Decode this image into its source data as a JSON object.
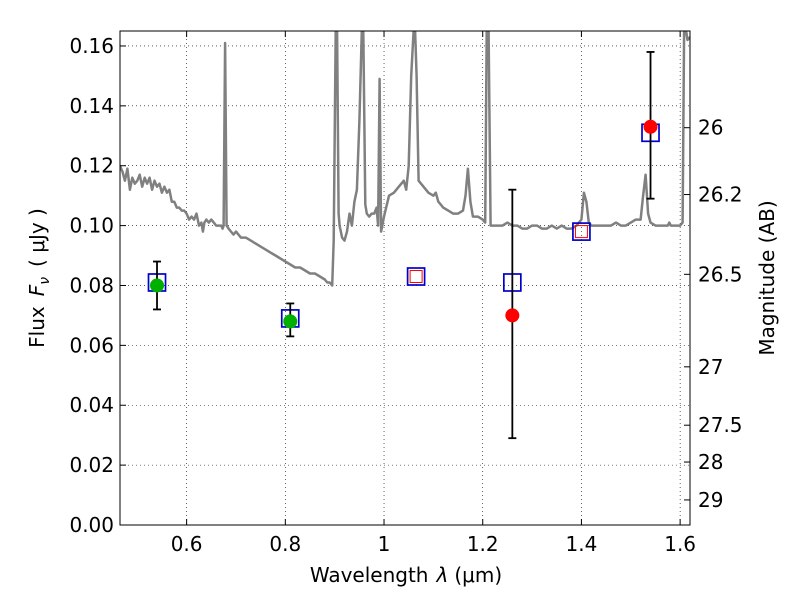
{
  "chart_data": {
    "type": "scatter",
    "xlabel_prefix": "Wavelength",
    "xlabel_symbol": "λ",
    "xlabel_unit": "(μm)",
    "ylabel_prefix": "Flux",
    "ylabel_symbol": "F",
    "ylabel_subscript": "ν",
    "ylabel_unit": "( μJy )",
    "y2label": "Magnitude (AB)",
    "xlim": [
      0.465,
      1.62
    ],
    "ylim": [
      0.0,
      0.165
    ],
    "x_ticks": [
      0.6,
      0.8,
      1.0,
      1.2,
      1.4,
      1.6
    ],
    "x_tick_labels": [
      "0.6",
      "0.8",
      "1",
      "1.2",
      "1.4",
      "1.6"
    ],
    "y_ticks": [
      0.0,
      0.02,
      0.04,
      0.06,
      0.08,
      0.1,
      0.12,
      0.14,
      0.16
    ],
    "y_tick_labels": [
      "0.00",
      "0.02",
      "0.04",
      "0.06",
      "0.08",
      "0.10",
      "0.12",
      "0.14",
      "0.16"
    ],
    "mag_ticks": [
      26,
      26.2,
      26.5,
      27,
      27.5,
      28,
      29
    ],
    "mag_tick_labels": [
      "26",
      "26.2",
      "26.5",
      "27",
      "27.5",
      "28",
      "29"
    ],
    "grid": true,
    "colors": {
      "spectrum": "#808080",
      "model": "#0000cc",
      "observed_green": "#00b000",
      "observed_red": "#ff0000",
      "errorbar": "#000000"
    },
    "series": [
      {
        "name": "model-spectrum",
        "kind": "line",
        "points": [
          [
            0.465,
            0.12
          ],
          [
            0.47,
            0.118
          ],
          [
            0.475,
            0.115
          ],
          [
            0.48,
            0.119
          ],
          [
            0.485,
            0.112
          ],
          [
            0.49,
            0.116
          ],
          [
            0.495,
            0.114
          ],
          [
            0.5,
            0.115
          ],
          [
            0.505,
            0.117
          ],
          [
            0.51,
            0.113
          ],
          [
            0.515,
            0.116
          ],
          [
            0.52,
            0.114
          ],
          [
            0.525,
            0.116
          ],
          [
            0.53,
            0.112
          ],
          [
            0.535,
            0.115
          ],
          [
            0.54,
            0.113
          ],
          [
            0.545,
            0.114
          ],
          [
            0.55,
            0.111
          ],
          [
            0.555,
            0.113
          ],
          [
            0.56,
            0.111
          ],
          [
            0.565,
            0.112
          ],
          [
            0.57,
            0.108
          ],
          [
            0.575,
            0.108
          ],
          [
            0.58,
            0.106
          ],
          [
            0.585,
            0.106
          ],
          [
            0.59,
            0.105
          ],
          [
            0.595,
            0.105
          ],
          [
            0.6,
            0.104
          ],
          [
            0.605,
            0.102
          ],
          [
            0.61,
            0.103
          ],
          [
            0.615,
            0.102
          ],
          [
            0.62,
            0.104
          ],
          [
            0.625,
            0.1
          ],
          [
            0.63,
            0.101
          ],
          [
            0.633,
            0.098
          ],
          [
            0.636,
            0.101
          ],
          [
            0.64,
            0.102
          ],
          [
            0.645,
            0.101
          ],
          [
            0.65,
            0.102
          ],
          [
            0.655,
            0.101
          ],
          [
            0.66,
            0.1
          ],
          [
            0.665,
            0.1
          ],
          [
            0.67,
            0.1
          ],
          [
            0.673,
            0.099
          ],
          [
            0.675,
            0.1
          ],
          [
            0.678,
            0.161
          ],
          [
            0.681,
            0.1
          ],
          [
            0.685,
            0.099
          ],
          [
            0.69,
            0.098
          ],
          [
            0.695,
            0.097
          ],
          [
            0.7,
            0.098
          ],
          [
            0.71,
            0.096
          ],
          [
            0.72,
            0.096
          ],
          [
            0.73,
            0.095
          ],
          [
            0.74,
            0.094
          ],
          [
            0.75,
            0.093
          ],
          [
            0.76,
            0.092
          ],
          [
            0.77,
            0.091
          ],
          [
            0.78,
            0.09
          ],
          [
            0.79,
            0.089
          ],
          [
            0.8,
            0.088
          ],
          [
            0.81,
            0.087
          ],
          [
            0.82,
            0.086
          ],
          [
            0.83,
            0.086
          ],
          [
            0.84,
            0.085
          ],
          [
            0.85,
            0.084
          ],
          [
            0.86,
            0.084
          ],
          [
            0.87,
            0.083
          ],
          [
            0.88,
            0.082
          ],
          [
            0.885,
            0.081
          ],
          [
            0.89,
            0.081
          ],
          [
            0.895,
            0.08
          ],
          [
            0.898,
            0.095
          ],
          [
            0.902,
            0.165
          ],
          [
            0.905,
            0.165
          ],
          [
            0.908,
            0.104
          ],
          [
            0.91,
            0.1
          ],
          [
            0.915,
            0.096
          ],
          [
            0.92,
            0.095
          ],
          [
            0.925,
            0.098
          ],
          [
            0.93,
            0.104
          ],
          [
            0.935,
            0.1
          ],
          [
            0.94,
            0.108
          ],
          [
            0.945,
            0.112
          ],
          [
            0.95,
            0.135
          ],
          [
            0.955,
            0.165
          ],
          [
            0.958,
            0.165
          ],
          [
            0.962,
            0.107
          ],
          [
            0.965,
            0.104
          ],
          [
            0.97,
            0.103
          ],
          [
            0.975,
            0.104
          ],
          [
            0.98,
            0.104
          ],
          [
            0.985,
            0.106
          ],
          [
            0.988,
            0.1
          ],
          [
            0.991,
            0.149
          ],
          [
            0.994,
            0.098
          ],
          [
            1.0,
            0.103
          ],
          [
            1.01,
            0.11
          ],
          [
            1.02,
            0.111
          ],
          [
            1.03,
            0.113
          ],
          [
            1.04,
            0.115
          ],
          [
            1.045,
            0.112
          ],
          [
            1.05,
            0.12
          ],
          [
            1.055,
            0.15
          ],
          [
            1.06,
            0.165
          ],
          [
            1.063,
            0.165
          ],
          [
            1.066,
            0.15
          ],
          [
            1.07,
            0.115
          ],
          [
            1.08,
            0.113
          ],
          [
            1.09,
            0.111
          ],
          [
            1.1,
            0.11
          ],
          [
            1.105,
            0.111
          ],
          [
            1.11,
            0.108
          ],
          [
            1.115,
            0.107
          ],
          [
            1.12,
            0.106
          ],
          [
            1.13,
            0.105
          ],
          [
            1.14,
            0.104
          ],
          [
            1.15,
            0.104
          ],
          [
            1.16,
            0.105
          ],
          [
            1.165,
            0.11
          ],
          [
            1.17,
            0.119
          ],
          [
            1.175,
            0.108
          ],
          [
            1.18,
            0.103
          ],
          [
            1.19,
            0.103
          ],
          [
            1.2,
            0.102
          ],
          [
            1.205,
            0.101
          ],
          [
            1.208,
            0.165
          ],
          [
            1.212,
            0.165
          ],
          [
            1.216,
            0.1
          ],
          [
            1.22,
            0.1
          ],
          [
            1.23,
            0.1
          ],
          [
            1.24,
            0.1
          ],
          [
            1.25,
            0.101
          ],
          [
            1.26,
            0.1
          ],
          [
            1.27,
            0.1
          ],
          [
            1.28,
            0.099
          ],
          [
            1.29,
            0.099
          ],
          [
            1.3,
            0.1
          ],
          [
            1.31,
            0.1
          ],
          [
            1.32,
            0.099
          ],
          [
            1.33,
            0.099
          ],
          [
            1.34,
            0.1
          ],
          [
            1.35,
            0.099
          ],
          [
            1.36,
            0.1
          ],
          [
            1.37,
            0.099
          ],
          [
            1.38,
            0.099
          ],
          [
            1.39,
            0.1
          ],
          [
            1.4,
            0.102
          ],
          [
            1.405,
            0.111
          ],
          [
            1.41,
            0.108
          ],
          [
            1.415,
            0.101
          ],
          [
            1.42,
            0.1
          ],
          [
            1.43,
            0.1
          ],
          [
            1.44,
            0.1
          ],
          [
            1.45,
            0.1
          ],
          [
            1.46,
            0.1
          ],
          [
            1.47,
            0.101
          ],
          [
            1.48,
            0.1
          ],
          [
            1.49,
            0.1
          ],
          [
            1.5,
            0.101
          ],
          [
            1.51,
            0.102
          ],
          [
            1.52,
            0.102
          ],
          [
            1.525,
            0.11
          ],
          [
            1.53,
            0.117
          ],
          [
            1.535,
            0.104
          ],
          [
            1.54,
            0.101
          ],
          [
            1.55,
            0.1
          ],
          [
            1.56,
            0.1
          ],
          [
            1.57,
            0.1
          ],
          [
            1.575,
            0.1
          ],
          [
            1.578,
            0.101
          ],
          [
            1.581,
            0.1
          ],
          [
            1.59,
            0.1
          ],
          [
            1.6,
            0.1
          ],
          [
            1.605,
            0.101
          ],
          [
            1.608,
            0.165
          ],
          [
            1.612,
            0.165
          ],
          [
            1.615,
            0.162
          ],
          [
            1.62,
            0.163
          ]
        ]
      },
      {
        "name": "model-photometry",
        "kind": "open-square",
        "points": [
          [
            0.54,
            0.081
          ],
          [
            0.81,
            0.069
          ],
          [
            1.065,
            0.083
          ],
          [
            1.26,
            0.081
          ],
          [
            1.4,
            0.098
          ],
          [
            1.54,
            0.131
          ]
        ]
      },
      {
        "name": "observed-optical",
        "kind": "filled-circle",
        "color": "green",
        "points": [
          [
            0.54,
            0.08
          ],
          [
            0.81,
            0.068
          ]
        ],
        "errors": [
          [
            0.072,
            0.088
          ],
          [
            0.063,
            0.074
          ]
        ]
      },
      {
        "name": "observed-nir",
        "kind": "filled-circle",
        "color": "red",
        "points": [
          [
            1.26,
            0.07
          ],
          [
            1.54,
            0.133
          ]
        ],
        "errors": [
          [
            0.029,
            0.112
          ],
          [
            0.109,
            0.158
          ]
        ]
      },
      {
        "name": "observed-nir-small",
        "kind": "open-square-small",
        "color": "red",
        "points": [
          [
            1.065,
            0.083
          ],
          [
            1.4,
            0.098
          ]
        ]
      }
    ]
  }
}
